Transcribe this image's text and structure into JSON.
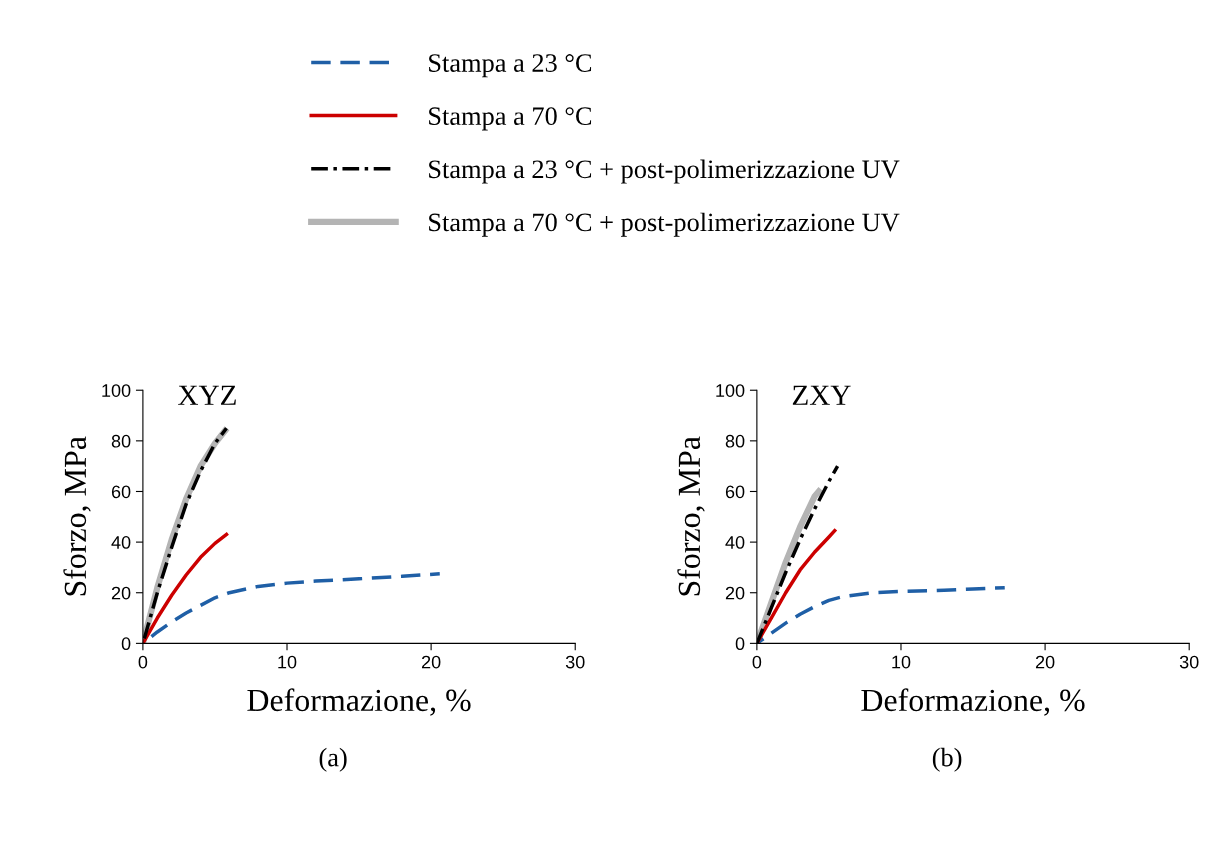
{
  "chart_data": [
    {
      "type": "line",
      "title": "XYZ",
      "xlabel": "Deformazione, %",
      "ylabel": "Sforzo, MPa",
      "annotations": [
        "(a)"
      ],
      "xlim": [
        0,
        30
      ],
      "xticks": [
        0,
        10,
        20,
        30
      ],
      "ylim": [
        0,
        100
      ],
      "yticks": [
        0,
        20,
        40,
        60,
        80,
        100
      ],
      "grid": false,
      "legend": "top",
      "marker": "none",
      "series": [
        {
          "name": "Stampa a 23 °C",
          "color": "#1f5fa6",
          "line_style": "dashed",
          "x": [
            0,
            1,
            2,
            3,
            4,
            5,
            6,
            8,
            10,
            12,
            15,
            18,
            20.6
          ],
          "values": [
            0,
            4.5,
            8.5,
            12,
            15,
            18,
            20,
            22.5,
            23.8,
            24.6,
            25.5,
            26.5,
            27.5
          ]
        },
        {
          "name": "Stampa a 70 °C",
          "color": "#cc0000",
          "line_style": "solid",
          "x": [
            0,
            1,
            2,
            3,
            4,
            5,
            5.8
          ],
          "values": [
            0,
            10,
            19,
            27,
            34,
            39.5,
            43
          ]
        },
        {
          "name": "Stampa a 23 °C + post-polimerizzazione UV",
          "color": "#000000",
          "line_style": "dashdot",
          "x": [
            0,
            1,
            2,
            3,
            4,
            5,
            5.8
          ],
          "values": [
            0,
            20,
            38,
            55,
            68,
            79,
            85
          ]
        },
        {
          "name": "Stampa a 70 °C + post-polimerizzazione UV",
          "color": "#b4b4b4",
          "line_style": "solid",
          "x": [
            0,
            1,
            2,
            3,
            4,
            5,
            5.7
          ],
          "values": [
            0,
            22,
            41,
            57,
            70,
            79,
            84
          ]
        }
      ]
    },
    {
      "type": "line",
      "title": "ZXY",
      "xlabel": "Deformazione, %",
      "ylabel": "Sforzo, MPa",
      "annotations": [
        "(b)"
      ],
      "xlim": [
        0,
        30
      ],
      "xticks": [
        0,
        10,
        20,
        30
      ],
      "ylim": [
        0,
        100
      ],
      "yticks": [
        0,
        20,
        40,
        60,
        80,
        100
      ],
      "grid": false,
      "marker": "none",
      "series": [
        {
          "color": "#1f5fa6",
          "line_style": "dashed",
          "x": [
            0,
            1,
            2,
            3,
            4,
            5,
            6,
            8,
            10,
            13,
            15,
            17.2
          ],
          "values": [
            0,
            4,
            8,
            11.5,
            14.5,
            17,
            18.5,
            20,
            20.5,
            21,
            21.5,
            22
          ]
        },
        {
          "color": "#cc0000",
          "line_style": "solid",
          "x": [
            0,
            1,
            2,
            3,
            4,
            5,
            5.4
          ],
          "values": [
            0,
            10,
            20,
            29,
            36,
            42,
            44.5
          ]
        },
        {
          "color": "#000000",
          "line_style": "dashdot",
          "x": [
            0,
            1,
            2,
            3,
            4,
            5,
            5.6
          ],
          "values": [
            0,
            14,
            28,
            41,
            53,
            64,
            70
          ]
        },
        {
          "color": "#b4b4b4",
          "line_style": "solid",
          "x": [
            0,
            1,
            2,
            3,
            4,
            4.3
          ],
          "values": [
            0,
            16,
            32,
            46,
            58,
            60
          ]
        }
      ]
    }
  ]
}
